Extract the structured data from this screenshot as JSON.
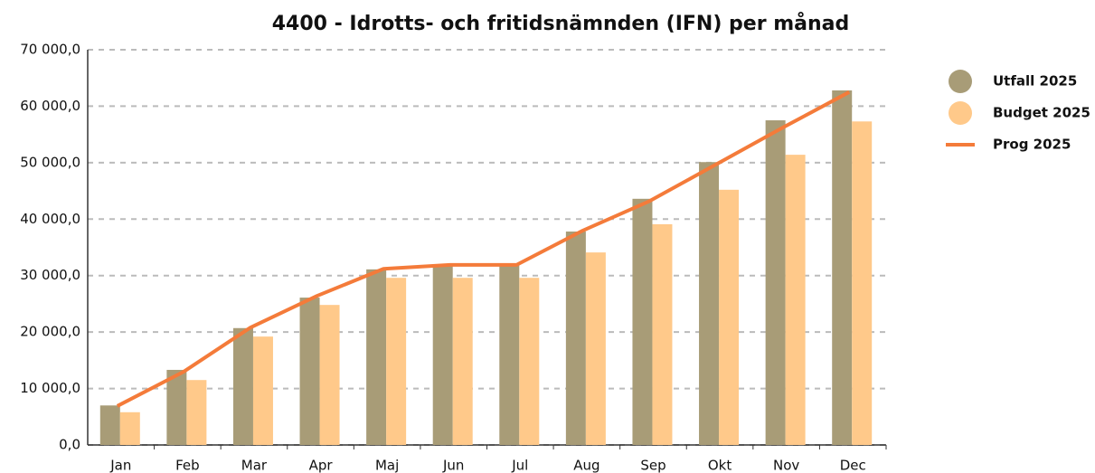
{
  "chart_data": {
    "type": "bar_line",
    "title": "4400 - Idrotts- och fritidsnämnden (IFN) per månad",
    "categories": [
      "Jan",
      "Feb",
      "Mar",
      "Apr",
      "Maj",
      "Jun",
      "Jul",
      "Aug",
      "Sep",
      "Okt",
      "Nov",
      "Dec"
    ],
    "series": [
      {
        "name": "Utfall 2025",
        "type": "bar",
        "color": "#a89c77",
        "values": [
          7000,
          13300,
          20700,
          26100,
          31100,
          31900,
          31900,
          37800,
          43600,
          50100,
          57500,
          62800
        ]
      },
      {
        "name": "Budget 2025",
        "type": "bar",
        "color": "#ffc98a",
        "values": [
          5800,
          11500,
          19200,
          24800,
          29600,
          29600,
          29600,
          34100,
          39100,
          45200,
          51400,
          57300
        ]
      },
      {
        "name": "Prog 2025",
        "type": "line",
        "color": "#f47b3a",
        "values": [
          6900,
          13000,
          20800,
          26400,
          31200,
          31900,
          31900,
          38000,
          43200,
          49700,
          56200,
          62500
        ]
      }
    ],
    "ylim": [
      0,
      70000
    ],
    "yticks": [
      {
        "value": 0,
        "label": "0,0"
      },
      {
        "value": 10000,
        "label": "10 000,0"
      },
      {
        "value": 20000,
        "label": "20 000,0"
      },
      {
        "value": 30000,
        "label": "30 000,0"
      },
      {
        "value": 40000,
        "label": "40 000,0"
      },
      {
        "value": 50000,
        "label": "50 000,0"
      },
      {
        "value": 60000,
        "label": "60 000,0"
      },
      {
        "value": 70000,
        "label": "70 000,0"
      }
    ],
    "grid": true,
    "legend": "right"
  }
}
